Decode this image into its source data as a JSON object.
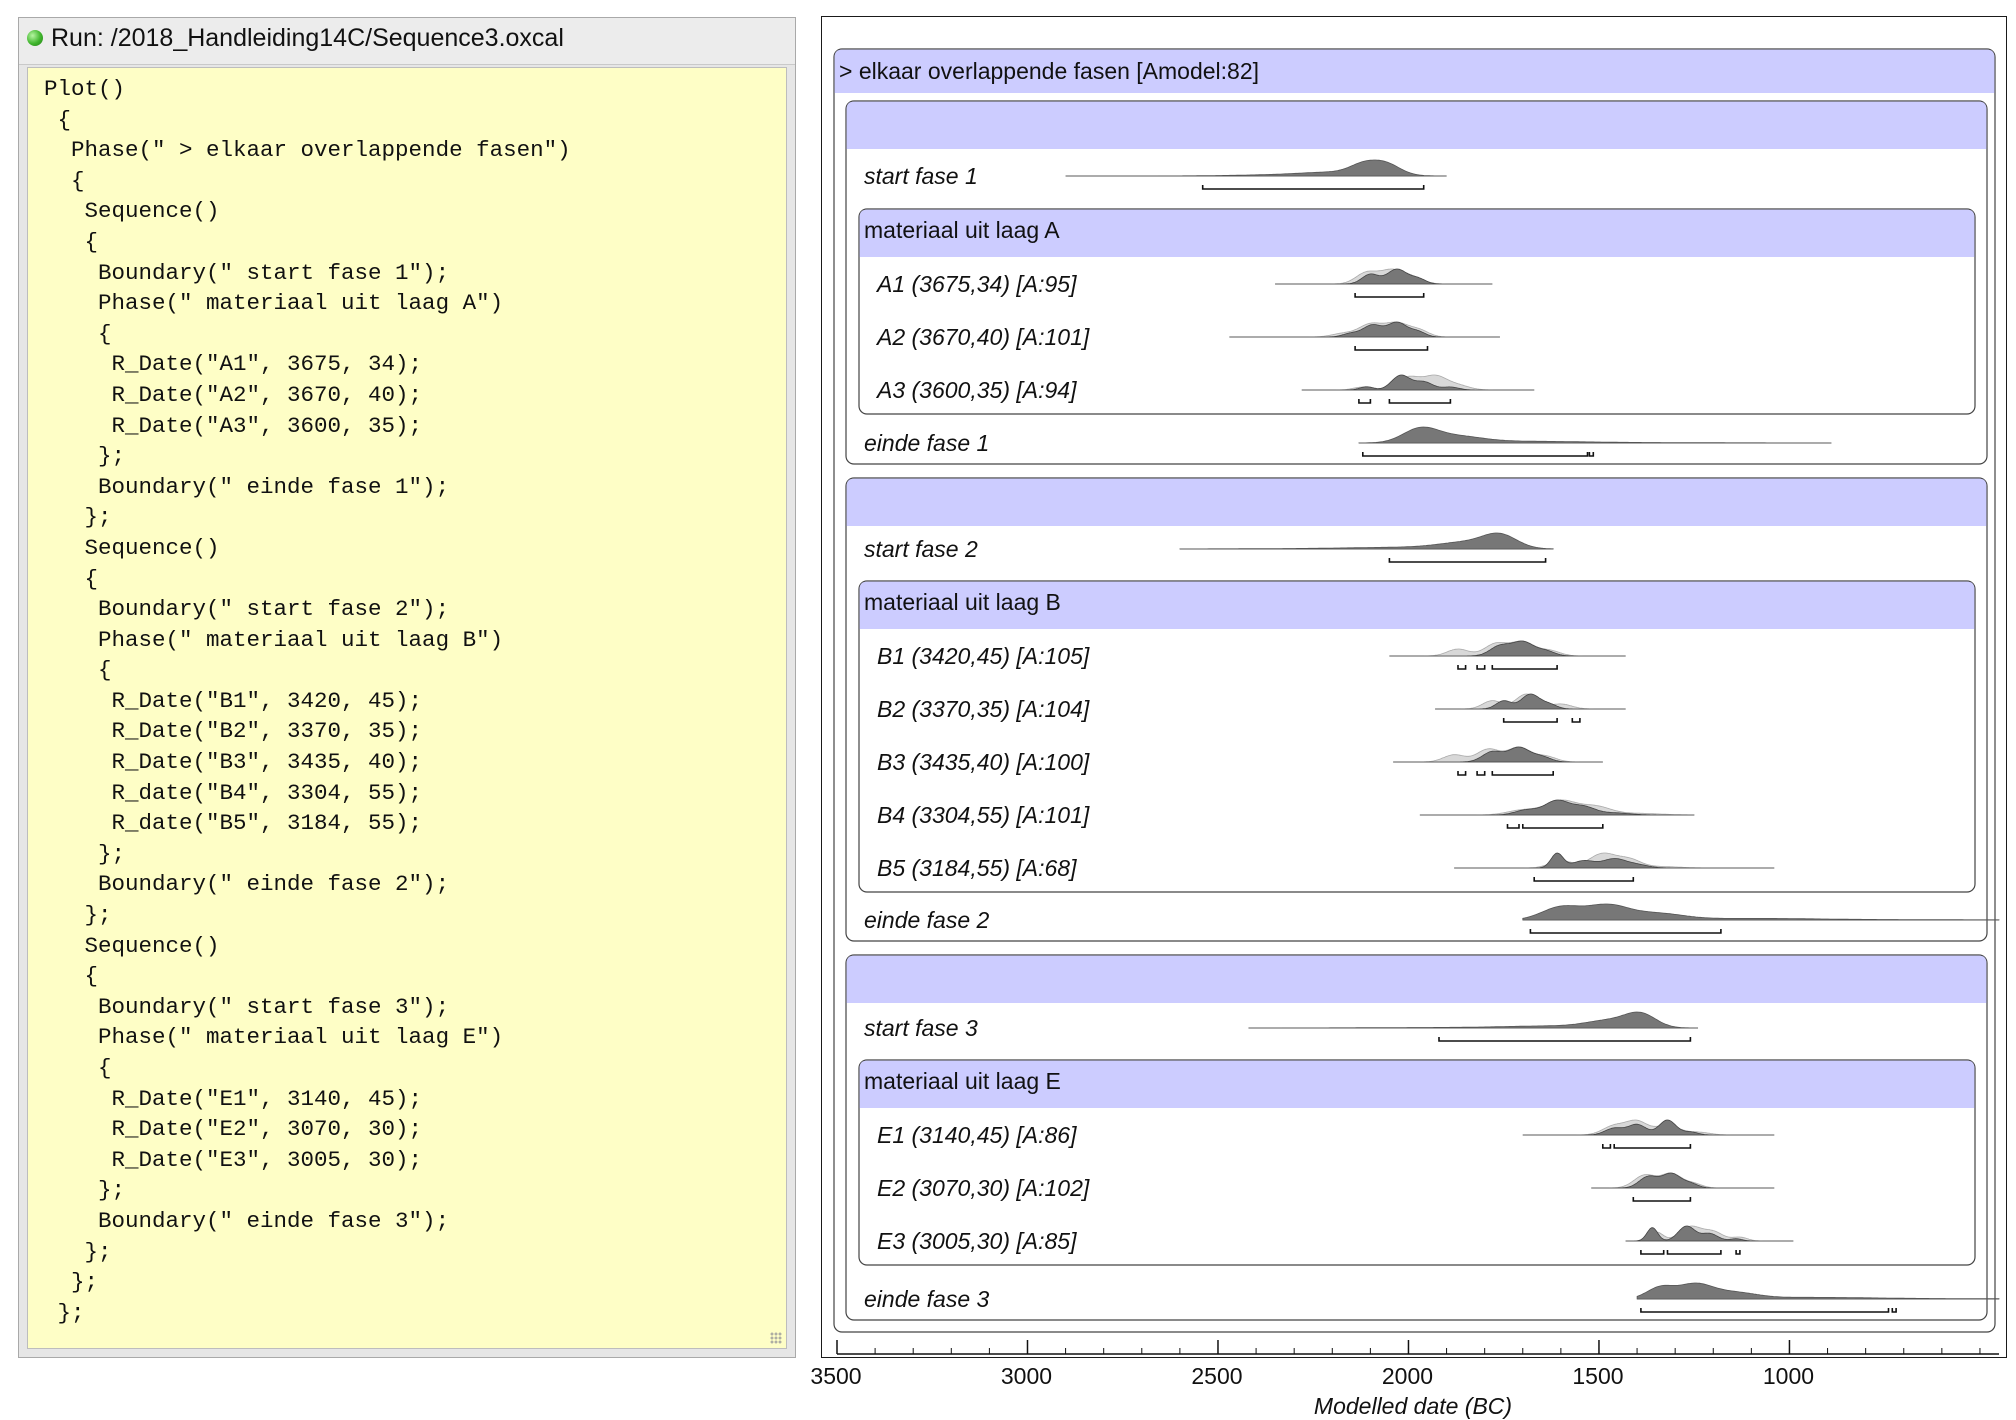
{
  "window": {
    "title": "Run: /2018_Handleiding14C/Sequence3.oxcal",
    "status_color": "#3fb52c"
  },
  "code": [
    "Plot()",
    " {",
    "  Phase(\" > elkaar overlappende fasen\")",
    "  {",
    "   Sequence()",
    "   {",
    "    Boundary(\" start fase 1\");",
    "    Phase(\" materiaal uit laag A\")",
    "    {",
    "     R_Date(\"A1\", 3675, 34);",
    "     R_Date(\"A2\", 3670, 40);",
    "     R_Date(\"A3\", 3600, 35);",
    "    };",
    "    Boundary(\" einde fase 1\");",
    "   };",
    "   Sequence()",
    "   {",
    "    Boundary(\" start fase 2\");",
    "    Phase(\" materiaal uit laag B\")",
    "    {",
    "     R_Date(\"B1\", 3420, 45);",
    "     R_Date(\"B2\", 3370, 35);",
    "     R_Date(\"B3\", 3435, 40);",
    "     R_date(\"B4\", 3304, 55);",
    "     R_date(\"B5\", 3184, 55);",
    "    };",
    "    Boundary(\" einde fase 2\");",
    "   };",
    "   Sequence()",
    "   {",
    "    Boundary(\" start fase 3\");",
    "    Phase(\" materiaal uit laag E\")",
    "    {",
    "     R_Date(\"E1\", 3140, 45);",
    "     R_Date(\"E2\", 3070, 30);",
    "     R_Date(\"E3\", 3005, 30);",
    "    };",
    "    Boundary(\" einde fase 3\");",
    "   };",
    "  };",
    " };"
  ],
  "colors": {
    "header_fill": "#ccccff",
    "posterior": "#777777",
    "prior": "#d8d8d8",
    "code_bg": "#fefec6"
  },
  "chart_data": {
    "type": "multiplot",
    "xlabel": "Modelled date (BC)",
    "xlim": [
      3500,
      450
    ],
    "xticks": [
      3500,
      3000,
      2500,
      2000,
      1500,
      1000
    ],
    "outer_header": "> elkaar overlappende fasen [Amodel:82]",
    "sequences": [
      {
        "start": {
          "label": "start fase 1",
          "tail": [
            2900,
            1900
          ],
          "peaks": [
            [
              2120,
              0.75,
              35
            ],
            [
              2060,
              1.0,
              38
            ],
            [
              2180,
              0.28,
              90
            ],
            [
              2300,
              0.12,
              140
            ]
          ],
          "ranges": [
            [
              2540,
              1960
            ]
          ]
        },
        "phase": {
          "header": "materiaal uit laag A",
          "dates": [
            {
              "label": "A1 (3675,34) [A:95]",
              "prior_x": [
                2350,
                1780
              ],
              "prior": [
                [
                  2110,
                  0.8,
                  28
                ],
                [
                  2045,
                  0.95,
                  30
                ],
                [
                  1990,
                  0.45,
                  28
                ]
              ],
              "post": [
                [
                  2100,
                  0.65,
                  22
                ],
                [
                  2030,
                  1.0,
                  26
                ],
                [
                  1975,
                  0.35,
                  20
                ]
              ],
              "ranges": [
                [
                  2140,
                  1960
                ]
              ]
            },
            {
              "label": "A2 (3670,40) [A:101]",
              "prior_x": [
                2470,
                1760
              ],
              "prior": [
                [
                  2170,
                  0.25,
                  30
                ],
                [
                  2100,
                  0.85,
                  30
                ],
                [
                  2030,
                  0.95,
                  32
                ],
                [
                  1970,
                  0.4,
                  25
                ]
              ],
              "post": [
                [
                  2150,
                  0.25,
                  22
                ],
                [
                  2095,
                  0.8,
                  24
                ],
                [
                  2030,
                  1.0,
                  26
                ],
                [
                  1975,
                  0.35,
                  20
                ]
              ],
              "ranges": [
                [
                  2140,
                  1950
                ]
              ]
            },
            {
              "label": "A3 (3600,35) [A:94]",
              "prior_x": [
                2280,
                1670
              ],
              "prior": [
                [
                  2120,
                  0.2,
                  24
                ],
                [
                  2000,
                  0.85,
                  30
                ],
                [
                  1930,
                  0.9,
                  30
                ],
                [
                  1870,
                  0.3,
                  30
                ]
              ],
              "post": [
                [
                  2110,
                  0.22,
                  18
                ],
                [
                  2020,
                  1.0,
                  24
                ],
                [
                  1960,
                  0.55,
                  24
                ],
                [
                  1890,
                  0.2,
                  22
                ]
              ],
              "ranges": [
                [
                  2130,
                  2100
                ],
                [
                  2050,
                  1890
                ]
              ]
            }
          ]
        },
        "end": {
          "label": "einde fase 1",
          "tail": [
            2130,
            890
          ],
          "peaks": [
            [
              1970,
              1.0,
              45
            ],
            [
              1880,
              0.5,
              70
            ],
            [
              1700,
              0.12,
              150
            ],
            [
              1400,
              0.03,
              250
            ]
          ],
          "ranges": [
            [
              2120,
              1530
            ],
            [
              1525,
              1515
            ]
          ]
        }
      },
      {
        "start": {
          "label": "start fase 2",
          "tail": [
            2600,
            1620
          ],
          "peaks": [
            [
              1760,
              1.0,
              45
            ],
            [
              1850,
              0.45,
              70
            ],
            [
              2000,
              0.12,
              140
            ],
            [
              2250,
              0.03,
              200
            ]
          ],
          "ranges": [
            [
              2050,
              1640
            ]
          ]
        },
        "phase": {
          "header": "materiaal uit laag B",
          "dates": [
            {
              "label": "B1 (3420,45) [A:105]",
              "prior_x": [
                2050,
                1430
              ],
              "prior": [
                [
                  1870,
                  0.45,
                  28
                ],
                [
                  1770,
                  0.8,
                  30
                ],
                [
                  1700,
                  0.9,
                  30
                ],
                [
                  1630,
                  0.35,
                  28
                ]
              ],
              "post": [
                [
                  1760,
                  0.7,
                  26
                ],
                [
                  1700,
                  1.0,
                  28
                ],
                [
                  1640,
                  0.35,
                  24
                ]
              ],
              "ranges": [
                [
                  1870,
                  1850
                ],
                [
                  1820,
                  1800
                ],
                [
                  1780,
                  1610
                ]
              ]
            },
            {
              "label": "B2 (3370,35) [A:104]",
              "prior_x": [
                1930,
                1430
              ],
              "prior": [
                [
                  1780,
                  0.5,
                  25
                ],
                [
                  1690,
                  0.9,
                  28
                ],
                [
                  1600,
                  0.3,
                  28
                ]
              ],
              "post": [
                [
                  1750,
                  0.55,
                  20
                ],
                [
                  1680,
                  1.0,
                  24
                ],
                [
                  1630,
                  0.3,
                  20
                ]
              ],
              "ranges": [
                [
                  1750,
                  1610
                ],
                [
                  1570,
                  1550
                ]
              ]
            },
            {
              "label": "B3 (3435,40) [A:100]",
              "prior_x": [
                2040,
                1490
              ],
              "prior": [
                [
                  1880,
                  0.45,
                  28
                ],
                [
                  1790,
                  0.8,
                  30
                ],
                [
                  1710,
                  0.9,
                  30
                ],
                [
                  1640,
                  0.35,
                  28
                ]
              ],
              "post": [
                [
                  1780,
                  0.7,
                  26
                ],
                [
                  1710,
                  1.0,
                  28
                ],
                [
                  1650,
                  0.35,
                  24
                ]
              ],
              "ranges": [
                [
                  1870,
                  1850
                ],
                [
                  1820,
                  1800
                ],
                [
                  1780,
                  1620
                ]
              ]
            },
            {
              "label": "B4 (3304,55) [A:101]",
              "prior_x": [
                1970,
                1250
              ],
              "prior": [
                [
                  1700,
                  0.3,
                  40
                ],
                [
                  1600,
                  0.85,
                  40
                ],
                [
                  1510,
                  0.5,
                  40
                ],
                [
                  1400,
                  0.1,
                  60
                ]
              ],
              "post": [
                [
                  1690,
                  0.35,
                  30
                ],
                [
                  1610,
                  1.0,
                  32
                ],
                [
                  1540,
                  0.55,
                  30
                ],
                [
                  1460,
                  0.15,
                  40
                ]
              ],
              "ranges": [
                [
                  1740,
                  1710
                ],
                [
                  1700,
                  1490
                ]
              ]
            },
            {
              "label": "B5 (3184,55) [A:68]",
              "prior_x": [
                1880,
                1040
              ],
              "prior": [
                [
                  1600,
                  0.5,
                  30
                ],
                [
                  1490,
                  1.0,
                  35
                ],
                [
                  1420,
                  0.55,
                  30
                ],
                [
                  1340,
                  0.1,
                  50
                ]
              ],
              "post": [
                [
                  1610,
                  0.9,
                  16
                ],
                [
                  1540,
                  0.45,
                  30
                ],
                [
                  1460,
                  0.55,
                  30
                ],
                [
                  1400,
                  0.2,
                  30
                ]
              ],
              "ranges": [
                [
                  1670,
                  1410
                ]
              ]
            }
          ]
        },
        "end": {
          "label": "einde fase 2",
          "tail": [
            1700,
            450
          ],
          "peaks": [
            [
              1600,
              0.9,
              50
            ],
            [
              1480,
              1.0,
              55
            ],
            [
              1350,
              0.45,
              70
            ],
            [
              1100,
              0.1,
              150
            ],
            [
              800,
              0.03,
              250
            ]
          ],
          "ranges": [
            [
              1680,
              1180
            ]
          ]
        }
      },
      {
        "start": {
          "label": "start fase 3",
          "tail": [
            2420,
            1240
          ],
          "peaks": [
            [
              1390,
              1.0,
              40
            ],
            [
              1470,
              0.55,
              60
            ],
            [
              1620,
              0.15,
              120
            ],
            [
              1900,
              0.04,
              200
            ]
          ],
          "ranges": [
            [
              1920,
              1260
            ]
          ]
        },
        "phase": {
          "header": "materiaal uit laag E",
          "dates": [
            {
              "label": "E1 (3140,45) [A:86]",
              "prior_x": [
                1700,
                1040
              ],
              "prior": [
                [
                  1460,
                  0.65,
                  30
                ],
                [
                  1400,
                  0.95,
                  28
                ],
                [
                  1320,
                  0.7,
                  30
                ],
                [
                  1240,
                  0.2,
                  30
                ]
              ],
              "post": [
                [
                  1460,
                  0.45,
                  24
                ],
                [
                  1400,
                  0.7,
                  24
                ],
                [
                  1320,
                  1.0,
                  22
                ],
                [
                  1260,
                  0.2,
                  20
                ]
              ],
              "ranges": [
                [
                  1490,
                  1470
                ],
                [
                  1460,
                  1260
                ]
              ]
            },
            {
              "label": "E2 (3070,30) [A:102]",
              "prior_x": [
                1520,
                1040
              ],
              "prior": [
                [
                  1380,
                  0.8,
                  28
                ],
                [
                  1310,
                  0.9,
                  28
                ],
                [
                  1250,
                  0.25,
                  22
                ]
              ],
              "post": [
                [
                  1370,
                  0.8,
                  24
                ],
                [
                  1310,
                  1.0,
                  24
                ],
                [
                  1260,
                  0.3,
                  20
                ]
              ],
              "ranges": [
                [
                  1410,
                  1260
                ]
              ]
            },
            {
              "label": "E3 (3005,30) [A:85]",
              "prior_x": [
                1430,
                990
              ],
              "prior": [
                [
                  1350,
                  0.6,
                  18
                ],
                [
                  1260,
                  0.95,
                  28
                ],
                [
                  1200,
                  0.6,
                  26
                ],
                [
                  1130,
                  0.25,
                  20
                ]
              ],
              "post": [
                [
                  1360,
                  0.9,
                  14
                ],
                [
                  1270,
                  1.0,
                  22
                ],
                [
                  1210,
                  0.5,
                  22
                ],
                [
                  1140,
                  0.15,
                  16
                ]
              ],
              "ranges": [
                [
                  1390,
                  1330
                ],
                [
                  1320,
                  1180
                ],
                [
                  1140,
                  1130
                ]
              ]
            }
          ]
        },
        "end": {
          "label": "einde fase 3",
          "tail": [
            1400,
            450
          ],
          "peaks": [
            [
              1340,
              0.8,
              35
            ],
            [
              1250,
              1.0,
              45
            ],
            [
              1150,
              0.45,
              60
            ],
            [
              950,
              0.1,
              150
            ],
            [
              700,
              0.03,
              250
            ]
          ],
          "ranges": [
            [
              1390,
              740
            ],
            [
              730,
              720
            ]
          ]
        }
      }
    ]
  }
}
